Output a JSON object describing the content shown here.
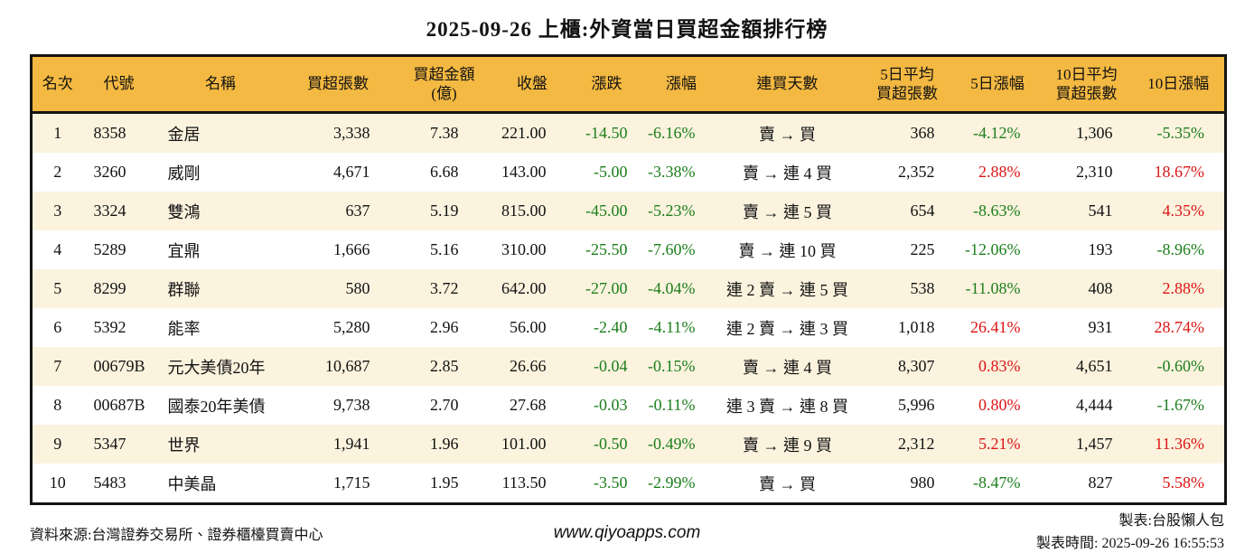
{
  "title": "2025-09-26 上櫃:外資當日買超金額排行榜",
  "colors": {
    "header_bg": "#F4B942",
    "row_alt_bg": "#FBF3DE",
    "up_red": "#DC1414",
    "down_green": "#1B7E1B"
  },
  "table": {
    "headers": [
      {
        "lines": [
          "名次"
        ]
      },
      {
        "lines": [
          "代號"
        ]
      },
      {
        "lines": [
          "名稱"
        ]
      },
      {
        "lines": [
          "買超張數"
        ]
      },
      {
        "lines": [
          "買超金額",
          "(億)"
        ]
      },
      {
        "lines": [
          "收盤"
        ]
      },
      {
        "lines": [
          "漲跌"
        ]
      },
      {
        "lines": [
          "漲幅"
        ]
      },
      {
        "lines": [
          "連買天數"
        ]
      },
      {
        "lines": [
          "5日平均",
          "買超張數"
        ]
      },
      {
        "lines": [
          "5日漲幅"
        ]
      },
      {
        "lines": [
          "10日平均",
          "買超張數"
        ]
      },
      {
        "lines": [
          "10日漲幅"
        ]
      }
    ],
    "rows": [
      {
        "rank": "1",
        "code": "8358",
        "name": "金居",
        "lots": "3,338",
        "amount": "7.38",
        "close": "221.00",
        "change": "-14.50",
        "change_pct": "-6.16%",
        "streak": "賣 → 買",
        "avg5": "368",
        "pct5": "-4.12%",
        "avg10": "1,306",
        "pct10": "-5.35%"
      },
      {
        "rank": "2",
        "code": "3260",
        "name": "威剛",
        "lots": "4,671",
        "amount": "6.68",
        "close": "143.00",
        "change": "-5.00",
        "change_pct": "-3.38%",
        "streak": "賣 → 連 4 買",
        "avg5": "2,352",
        "pct5": "2.88%",
        "avg10": "2,310",
        "pct10": "18.67%"
      },
      {
        "rank": "3",
        "code": "3324",
        "name": "雙鴻",
        "lots": "637",
        "amount": "5.19",
        "close": "815.00",
        "change": "-45.00",
        "change_pct": "-5.23%",
        "streak": "賣 → 連 5 買",
        "avg5": "654",
        "pct5": "-8.63%",
        "avg10": "541",
        "pct10": "4.35%"
      },
      {
        "rank": "4",
        "code": "5289",
        "name": "宜鼎",
        "lots": "1,666",
        "amount": "5.16",
        "close": "310.00",
        "change": "-25.50",
        "change_pct": "-7.60%",
        "streak": "賣 → 連 10 買",
        "avg5": "225",
        "pct5": "-12.06%",
        "avg10": "193",
        "pct10": "-8.96%"
      },
      {
        "rank": "5",
        "code": "8299",
        "name": "群聯",
        "lots": "580",
        "amount": "3.72",
        "close": "642.00",
        "change": "-27.00",
        "change_pct": "-4.04%",
        "streak": "連 2 賣 → 連 5 買",
        "avg5": "538",
        "pct5": "-11.08%",
        "avg10": "408",
        "pct10": "2.88%"
      },
      {
        "rank": "6",
        "code": "5392",
        "name": "能率",
        "lots": "5,280",
        "amount": "2.96",
        "close": "56.00",
        "change": "-2.40",
        "change_pct": "-4.11%",
        "streak": "連 2 賣 → 連 3 買",
        "avg5": "1,018",
        "pct5": "26.41%",
        "avg10": "931",
        "pct10": "28.74%"
      },
      {
        "rank": "7",
        "code": "00679B",
        "name": "元大美債20年",
        "lots": "10,687",
        "amount": "2.85",
        "close": "26.66",
        "change": "-0.04",
        "change_pct": "-0.15%",
        "streak": "賣 → 連 4 買",
        "avg5": "8,307",
        "pct5": "0.83%",
        "avg10": "4,651",
        "pct10": "-0.60%"
      },
      {
        "rank": "8",
        "code": "00687B",
        "name": "國泰20年美債",
        "lots": "9,738",
        "amount": "2.70",
        "close": "27.68",
        "change": "-0.03",
        "change_pct": "-0.11%",
        "streak": "連 3 賣 → 連 8 買",
        "avg5": "5,996",
        "pct5": "0.80%",
        "avg10": "4,444",
        "pct10": "-1.67%"
      },
      {
        "rank": "9",
        "code": "5347",
        "name": "世界",
        "lots": "1,941",
        "amount": "1.96",
        "close": "101.00",
        "change": "-0.50",
        "change_pct": "-0.49%",
        "streak": "賣 → 連 9 買",
        "avg5": "2,312",
        "pct5": "5.21%",
        "avg10": "1,457",
        "pct10": "11.36%"
      },
      {
        "rank": "10",
        "code": "5483",
        "name": "中美晶",
        "lots": "1,715",
        "amount": "1.95",
        "close": "113.50",
        "change": "-3.50",
        "change_pct": "-2.99%",
        "streak": "賣 → 買",
        "avg5": "980",
        "pct5": "-8.47%",
        "avg10": "827",
        "pct10": "5.58%"
      }
    ]
  },
  "footer": {
    "source": "資料來源:台灣證券交易所、證券櫃檯買賣中心",
    "website": "www.qiyoapps.com",
    "maker": "製表:台股懶人包",
    "made_at": "製表時間: 2025-09-26 16:55:53"
  }
}
